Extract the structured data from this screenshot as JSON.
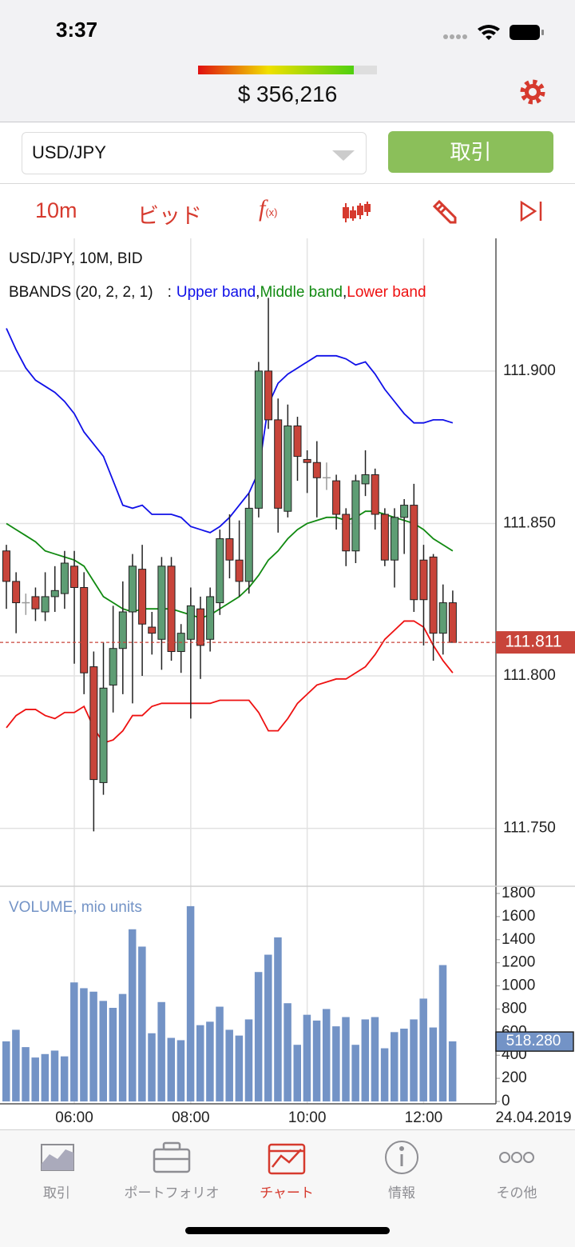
{
  "status_bar": {
    "time": "3:37"
  },
  "header": {
    "balance": "$ 356,216"
  },
  "instrument_bar": {
    "symbol": "USD/JPY",
    "trade_button": "取引"
  },
  "toolbar": {
    "interval": "10m",
    "price_type": "ビッド",
    "indicator_button": "f",
    "indicator_button_sub": "(x)"
  },
  "chart_data": {
    "type": "candlestick",
    "title": "USD/JPY, 10M, BID",
    "indicator": "BBANDS (20, 2, 2, 1)",
    "legend_prefix": ":",
    "legend_separator": ",",
    "categories": [
      null,
      null,
      null,
      null,
      null,
      null,
      null,
      "06:00",
      null,
      null,
      null,
      null,
      null,
      null,
      null,
      null,
      null,
      null,
      null,
      "08:00",
      null,
      null,
      null,
      null,
      null,
      null,
      null,
      null,
      null,
      null,
      null,
      "10:00",
      null,
      null,
      null,
      null,
      null,
      null,
      null,
      null,
      null,
      null,
      null,
      "12:00",
      null,
      null,
      null
    ],
    "date_label": "24.04.2019",
    "open": [
      111.841,
      111.831,
      111.824,
      111.826,
      111.821,
      111.826,
      111.827,
      111.836,
      111.829,
      111.803,
      111.765,
      111.797,
      111.809,
      111.821,
      111.835,
      111.816,
      111.812,
      111.836,
      111.808,
      111.812,
      111.822,
      111.812,
      111.824,
      111.845,
      111.838,
      111.831,
      111.855,
      111.9,
      111.884,
      111.854,
      111.882,
      111.871,
      111.87,
      111.865,
      111.864,
      111.853,
      111.841,
      111.863,
      111.866,
      111.853,
      111.838,
      111.852,
      111.856,
      111.838,
      111.839,
      111.814,
      111.824
    ],
    "high": [
      111.843,
      111.834,
      111.827,
      111.829,
      111.834,
      111.836,
      111.841,
      111.841,
      111.834,
      111.808,
      111.811,
      111.823,
      111.831,
      111.84,
      111.843,
      111.821,
      111.839,
      111.839,
      111.817,
      111.829,
      111.826,
      111.829,
      111.848,
      111.853,
      111.851,
      111.86,
      111.903,
      111.924,
      111.891,
      111.889,
      111.885,
      111.874,
      111.877,
      111.87,
      111.866,
      111.855,
      111.866,
      111.874,
      111.868,
      111.855,
      111.855,
      111.858,
      111.863,
      111.843,
      111.84,
      111.83,
      111.828
    ],
    "low": [
      111.822,
      111.814,
      111.82,
      111.818,
      111.818,
      111.821,
      111.822,
      111.804,
      111.794,
      111.749,
      111.761,
      111.788,
      111.794,
      111.791,
      111.8,
      111.807,
      111.802,
      111.805,
      111.801,
      111.786,
      111.799,
      111.808,
      111.82,
      111.832,
      111.826,
      111.827,
      111.852,
      111.881,
      111.847,
      111.852,
      111.864,
      111.86,
      111.852,
      111.861,
      111.848,
      111.836,
      111.837,
      111.859,
      111.848,
      111.836,
      111.829,
      111.84,
      111.821,
      111.81,
      111.805,
      111.807,
      111.811
    ],
    "close": [
      111.831,
      111.824,
      111.824,
      111.822,
      111.826,
      111.828,
      111.837,
      111.829,
      111.801,
      111.766,
      111.796,
      111.809,
      111.821,
      111.836,
      111.817,
      111.814,
      111.836,
      111.808,
      111.814,
      111.823,
      111.81,
      111.826,
      111.845,
      111.838,
      111.831,
      111.855,
      111.9,
      111.884,
      111.855,
      111.882,
      111.872,
      111.87,
      111.865,
      111.865,
      111.853,
      111.841,
      111.864,
      111.866,
      111.853,
      111.838,
      111.852,
      111.856,
      111.825,
      111.825,
      111.814,
      111.824,
      111.811
    ],
    "colors": {
      "up": "#5e9d74",
      "down": "#c8443a",
      "flat": "#9a9a9a"
    },
    "series": [
      {
        "name": "Upper band",
        "color": "#1010e8",
        "values": [
          111.914,
          111.907,
          111.901,
          111.897,
          111.895,
          111.893,
          111.89,
          111.886,
          111.88,
          111.876,
          111.872,
          111.864,
          111.856,
          111.855,
          111.856,
          111.853,
          111.853,
          111.853,
          111.852,
          111.849,
          111.848,
          111.847,
          111.849,
          111.852,
          111.856,
          111.86,
          111.867,
          111.889,
          111.896,
          111.899,
          111.901,
          111.903,
          111.905,
          111.905,
          111.905,
          111.904,
          111.902,
          111.903,
          111.899,
          111.894,
          111.89,
          111.886,
          111.883,
          111.883,
          111.884,
          111.884,
          111.883
        ]
      },
      {
        "name": "Middle band",
        "color": "#118a11",
        "values": [
          111.85,
          111.848,
          111.846,
          111.844,
          111.841,
          111.84,
          111.839,
          111.838,
          111.836,
          111.831,
          111.826,
          111.824,
          111.822,
          111.821,
          111.822,
          111.822,
          111.822,
          111.822,
          111.821,
          111.82,
          111.819,
          111.82,
          111.822,
          111.824,
          111.826,
          111.829,
          111.833,
          111.838,
          111.841,
          111.845,
          111.848,
          111.85,
          111.851,
          111.852,
          111.852,
          111.851,
          111.852,
          111.854,
          111.854,
          111.853,
          111.852,
          111.851,
          111.85,
          111.848,
          111.845,
          111.843,
          111.841
        ]
      },
      {
        "name": "Lower band",
        "color": "#ee1111",
        "values": [
          111.783,
          111.787,
          111.789,
          111.789,
          111.787,
          111.786,
          111.788,
          111.788,
          111.79,
          111.783,
          111.778,
          111.779,
          111.782,
          111.787,
          111.787,
          111.79,
          111.791,
          111.791,
          111.791,
          111.791,
          111.791,
          111.791,
          111.792,
          111.792,
          111.792,
          111.792,
          111.788,
          111.782,
          111.782,
          111.786,
          111.791,
          111.794,
          111.797,
          111.798,
          111.799,
          111.799,
          111.801,
          111.803,
          111.807,
          111.812,
          111.815,
          111.818,
          111.818,
          111.816,
          111.81,
          111.805,
          111.801
        ]
      }
    ],
    "ylim": [
      111.731,
      111.943
    ],
    "yticks": [
      {
        "value": 111.75,
        "label": "111.750"
      },
      {
        "value": 111.8,
        "label": "111.800"
      },
      {
        "value": 111.85,
        "label": "111.850"
      },
      {
        "value": 111.9,
        "label": "111.900"
      }
    ],
    "grid": true,
    "last_price": 111.811,
    "volume": {
      "type": "bar",
      "title": "VOLUME, mio units",
      "color": "#7393c6",
      "values": [
        520,
        620,
        470,
        380,
        410,
        440,
        390,
        1030,
        980,
        950,
        870,
        810,
        930,
        1490,
        1340,
        590,
        860,
        550,
        530,
        1690,
        660,
        690,
        820,
        620,
        570,
        710,
        1120,
        1270,
        1420,
        850,
        490,
        750,
        700,
        800,
        650,
        730,
        490,
        710,
        730,
        460,
        600,
        630,
        710,
        890,
        640,
        1180,
        520
      ],
      "ylim": [
        0,
        1800
      ],
      "yticks": [
        0,
        200,
        400,
        600,
        800,
        1000,
        1200,
        1400,
        1600,
        1800
      ],
      "last_value": 518.28,
      "last_value_label": "518.280"
    }
  },
  "tab_bar": {
    "tabs": [
      {
        "label": "取引"
      },
      {
        "label": "ポートフォリオ"
      },
      {
        "label": "チャート"
      },
      {
        "label": "情報"
      },
      {
        "label": "その他"
      }
    ]
  }
}
